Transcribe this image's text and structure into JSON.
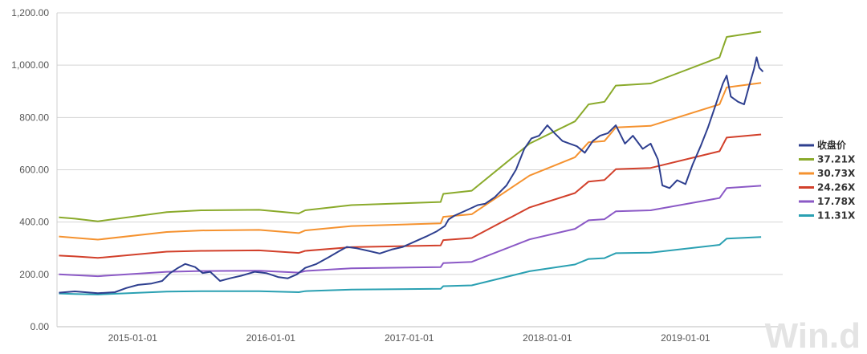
{
  "chart_data": {
    "type": "line",
    "title": "",
    "xlabel": "",
    "ylabel": "",
    "ylim": [
      0,
      1200
    ],
    "xlim": [
      "2014-06-15",
      "2019-09-15"
    ],
    "y_ticks": [
      "0.00",
      "200.00",
      "400.00",
      "600.00",
      "800.00",
      "1,000.00",
      "1,200.00"
    ],
    "x_ticks": [
      {
        "date": "2015-01-01",
        "label": "2015-01-01"
      },
      {
        "date": "2016-01-01",
        "label": "2016-01-01"
      },
      {
        "date": "2017-01-01",
        "label": "2017-01-01"
      },
      {
        "date": "2018-01-01",
        "label": "2018-01-01"
      },
      {
        "date": "2019-01-01",
        "label": "2019-01-01"
      }
    ],
    "grid": "horizontal",
    "legend_position": "right",
    "watermark": "Win.d",
    "series": [
      {
        "name": "收盘价",
        "color": "#2e3f8f",
        "width": 2,
        "points": [
          [
            "2014-06-20",
            130
          ],
          [
            "2014-08-01",
            135
          ],
          [
            "2014-10-01",
            128
          ],
          [
            "2014-11-15",
            132
          ],
          [
            "2014-12-15",
            148
          ],
          [
            "2015-01-15",
            160
          ],
          [
            "2015-02-20",
            165
          ],
          [
            "2015-03-20",
            175
          ],
          [
            "2015-04-10",
            205
          ],
          [
            "2015-05-01",
            225
          ],
          [
            "2015-05-20",
            240
          ],
          [
            "2015-06-15",
            228
          ],
          [
            "2015-07-05",
            205
          ],
          [
            "2015-07-25",
            210
          ],
          [
            "2015-08-20",
            175
          ],
          [
            "2015-09-15",
            185
          ],
          [
            "2015-10-15",
            195
          ],
          [
            "2015-11-20",
            210
          ],
          [
            "2015-12-20",
            205
          ],
          [
            "2016-01-20",
            190
          ],
          [
            "2016-02-15",
            185
          ],
          [
            "2016-03-10",
            200
          ],
          [
            "2016-04-01",
            225
          ],
          [
            "2016-05-01",
            240
          ],
          [
            "2016-06-01",
            265
          ],
          [
            "2016-07-01",
            290
          ],
          [
            "2016-07-20",
            305
          ],
          [
            "2016-08-15",
            300
          ],
          [
            "2016-09-15",
            290
          ],
          [
            "2016-10-15",
            280
          ],
          [
            "2016-11-15",
            295
          ],
          [
            "2016-12-15",
            305
          ],
          [
            "2017-01-15",
            325
          ],
          [
            "2017-02-15",
            345
          ],
          [
            "2017-03-15",
            365
          ],
          [
            "2017-04-05",
            385
          ],
          [
            "2017-04-15",
            410
          ],
          [
            "2017-05-01",
            425
          ],
          [
            "2017-06-01",
            445
          ],
          [
            "2017-07-01",
            465
          ],
          [
            "2017-07-20",
            470
          ],
          [
            "2017-08-15",
            495
          ],
          [
            "2017-09-15",
            540
          ],
          [
            "2017-10-10",
            600
          ],
          [
            "2017-11-01",
            680
          ],
          [
            "2017-11-20",
            720
          ],
          [
            "2017-12-10",
            730
          ],
          [
            "2018-01-01",
            770
          ],
          [
            "2018-01-20",
            740
          ],
          [
            "2018-02-10",
            710
          ],
          [
            "2018-03-01",
            700
          ],
          [
            "2018-03-20",
            690
          ],
          [
            "2018-04-10",
            665
          ],
          [
            "2018-05-01",
            710
          ],
          [
            "2018-05-20",
            730
          ],
          [
            "2018-06-10",
            740
          ],
          [
            "2018-07-01",
            770
          ],
          [
            "2018-07-25",
            700
          ],
          [
            "2018-08-15",
            730
          ],
          [
            "2018-09-10",
            680
          ],
          [
            "2018-10-01",
            700
          ],
          [
            "2018-10-20",
            640
          ],
          [
            "2018-11-01",
            540
          ],
          [
            "2018-11-20",
            530
          ],
          [
            "2018-12-10",
            560
          ],
          [
            "2019-01-01",
            545
          ],
          [
            "2019-01-20",
            620
          ],
          [
            "2019-02-10",
            690
          ],
          [
            "2019-03-01",
            760
          ],
          [
            "2019-03-20",
            840
          ],
          [
            "2019-04-10",
            930
          ],
          [
            "2019-04-20",
            960
          ],
          [
            "2019-05-01",
            880
          ],
          [
            "2019-05-20",
            860
          ],
          [
            "2019-06-05",
            850
          ],
          [
            "2019-06-20",
            930
          ],
          [
            "2019-07-01",
            985
          ],
          [
            "2019-07-08",
            1030
          ],
          [
            "2019-07-15",
            990
          ],
          [
            "2019-07-25",
            975
          ]
        ]
      },
      {
        "name": "37.21X",
        "color": "#8aaa2b",
        "width": 2,
        "points": [
          [
            "2014-06-20",
            418
          ],
          [
            "2014-08-01",
            413
          ],
          [
            "2014-10-01",
            403
          ],
          [
            "2015-04-01",
            438
          ],
          [
            "2015-07-01",
            445
          ],
          [
            "2015-12-01",
            447
          ],
          [
            "2016-03-15",
            433
          ],
          [
            "2016-04-01",
            445
          ],
          [
            "2016-08-01",
            465
          ],
          [
            "2017-03-25",
            477
          ],
          [
            "2017-04-01",
            508
          ],
          [
            "2017-06-15",
            520
          ],
          [
            "2017-11-15",
            700
          ],
          [
            "2018-03-15",
            785
          ],
          [
            "2018-04-20",
            850
          ],
          [
            "2018-06-01",
            860
          ],
          [
            "2018-07-01",
            922
          ],
          [
            "2018-10-01",
            930
          ],
          [
            "2019-04-01",
            1030
          ],
          [
            "2019-04-20",
            1108
          ],
          [
            "2019-07-20",
            1128
          ]
        ]
      },
      {
        "name": "30.73X",
        "color": "#f5922f",
        "width": 2,
        "points": [
          [
            "2014-06-20",
            345
          ],
          [
            "2014-08-01",
            340
          ],
          [
            "2014-10-01",
            333
          ],
          [
            "2015-04-01",
            362
          ],
          [
            "2015-07-01",
            368
          ],
          [
            "2015-12-01",
            370
          ],
          [
            "2016-03-15",
            358
          ],
          [
            "2016-04-01",
            368
          ],
          [
            "2016-08-01",
            385
          ],
          [
            "2017-03-25",
            395
          ],
          [
            "2017-04-01",
            420
          ],
          [
            "2017-06-15",
            430
          ],
          [
            "2017-11-15",
            578
          ],
          [
            "2018-03-15",
            648
          ],
          [
            "2018-04-20",
            705
          ],
          [
            "2018-06-01",
            710
          ],
          [
            "2018-07-01",
            762
          ],
          [
            "2018-10-01",
            768
          ],
          [
            "2019-04-01",
            850
          ],
          [
            "2019-04-20",
            915
          ],
          [
            "2019-07-20",
            932
          ]
        ]
      },
      {
        "name": "24.26X",
        "color": "#d2402b",
        "width": 2,
        "points": [
          [
            "2014-06-20",
            272
          ],
          [
            "2014-08-01",
            269
          ],
          [
            "2014-10-01",
            263
          ],
          [
            "2015-04-01",
            287
          ],
          [
            "2015-07-01",
            290
          ],
          [
            "2015-12-01",
            292
          ],
          [
            "2016-03-15",
            282
          ],
          [
            "2016-04-01",
            290
          ],
          [
            "2016-08-01",
            304
          ],
          [
            "2017-03-25",
            311
          ],
          [
            "2017-04-01",
            331
          ],
          [
            "2017-06-15",
            339
          ],
          [
            "2017-11-15",
            456
          ],
          [
            "2018-03-15",
            511
          ],
          [
            "2018-04-20",
            555
          ],
          [
            "2018-06-01",
            561
          ],
          [
            "2018-07-01",
            602
          ],
          [
            "2018-10-01",
            607
          ],
          [
            "2019-04-01",
            671
          ],
          [
            "2019-04-20",
            723
          ],
          [
            "2019-07-20",
            735
          ]
        ]
      },
      {
        "name": "17.78X",
        "color": "#8b59c6",
        "width": 2,
        "points": [
          [
            "2014-06-20",
            200
          ],
          [
            "2014-08-01",
            197
          ],
          [
            "2014-10-01",
            193
          ],
          [
            "2015-04-01",
            210
          ],
          [
            "2015-07-01",
            213
          ],
          [
            "2015-12-01",
            214
          ],
          [
            "2016-03-15",
            207
          ],
          [
            "2016-04-01",
            213
          ],
          [
            "2016-08-01",
            223
          ],
          [
            "2017-03-25",
            228
          ],
          [
            "2017-04-01",
            243
          ],
          [
            "2017-06-15",
            248
          ],
          [
            "2017-11-15",
            334
          ],
          [
            "2018-03-15",
            374
          ],
          [
            "2018-04-20",
            407
          ],
          [
            "2018-06-01",
            411
          ],
          [
            "2018-07-01",
            441
          ],
          [
            "2018-10-01",
            445
          ],
          [
            "2019-04-01",
            492
          ],
          [
            "2019-04-20",
            530
          ],
          [
            "2019-07-20",
            539
          ]
        ]
      },
      {
        "name": "11.31X",
        "color": "#2aa0b2",
        "width": 2,
        "points": [
          [
            "2014-06-20",
            127
          ],
          [
            "2014-08-01",
            125
          ],
          [
            "2014-10-01",
            123
          ],
          [
            "2015-04-01",
            134
          ],
          [
            "2015-07-01",
            136
          ],
          [
            "2015-12-01",
            136
          ],
          [
            "2016-03-15",
            132
          ],
          [
            "2016-04-01",
            136
          ],
          [
            "2016-08-01",
            142
          ],
          [
            "2017-03-25",
            145
          ],
          [
            "2017-04-01",
            155
          ],
          [
            "2017-06-15",
            158
          ],
          [
            "2017-11-15",
            212
          ],
          [
            "2018-03-15",
            238
          ],
          [
            "2018-04-20",
            259
          ],
          [
            "2018-06-01",
            262
          ],
          [
            "2018-07-01",
            281
          ],
          [
            "2018-10-01",
            283
          ],
          [
            "2019-04-01",
            313
          ],
          [
            "2019-04-20",
            337
          ],
          [
            "2019-07-20",
            343
          ]
        ]
      }
    ]
  }
}
